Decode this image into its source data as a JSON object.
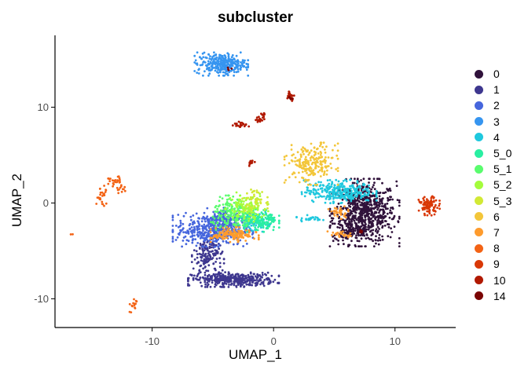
{
  "chart_data": {
    "type": "scatter",
    "title": "subcluster",
    "xlabel": "UMAP_1",
    "ylabel": "UMAP_2",
    "xlim": [
      -18,
      15
    ],
    "ylim": [
      -13,
      17.5
    ],
    "x_ticks": [
      -10,
      0,
      10
    ],
    "y_ticks": [
      -10,
      0,
      10
    ],
    "x_tick_labels": [
      "-10",
      "0",
      "10"
    ],
    "y_tick_labels": [
      "-10",
      "0",
      "10"
    ],
    "grid": false,
    "legend_position": "right",
    "series": [
      {
        "name": "0",
        "color": "#30123B",
        "clusters": [
          {
            "cx": 7.5,
            "cy": -1.0,
            "sx": 1.3,
            "sy": 1.6,
            "n": 700
          },
          {
            "cx": 6.2,
            "cy": -2.8,
            "sx": 0.6,
            "sy": 0.6,
            "n": 80
          }
        ]
      },
      {
        "name": "1",
        "color": "#3E378F",
        "clusters": [
          {
            "cx": -3.3,
            "cy": -8.0,
            "sx": 1.7,
            "sy": 0.35,
            "n": 380
          },
          {
            "cx": -5.4,
            "cy": -5.5,
            "sx": 0.6,
            "sy": 1.1,
            "n": 160
          }
        ]
      },
      {
        "name": "2",
        "color": "#4666DD",
        "clusters": [
          {
            "cx": -5.0,
            "cy": -2.8,
            "sx": 1.5,
            "sy": 0.8,
            "n": 450
          },
          {
            "cx": -3.7,
            "cy": -1.6,
            "sx": 0.8,
            "sy": 0.5,
            "n": 120
          }
        ]
      },
      {
        "name": "3",
        "color": "#3695F0",
        "clusters": [
          {
            "cx": -4.3,
            "cy": 14.5,
            "sx": 1.0,
            "sy": 0.55,
            "n": 300
          }
        ]
      },
      {
        "name": "4",
        "color": "#1FC8DE",
        "clusters": [
          {
            "cx": 5.4,
            "cy": 1.2,
            "sx": 1.4,
            "sy": 0.55,
            "n": 300
          },
          {
            "cx": -1.3,
            "cy": -1.9,
            "sx": 0.6,
            "sy": 0.5,
            "n": 60
          },
          {
            "cx": 3.0,
            "cy": -1.6,
            "sx": 0.5,
            "sy": 0.15,
            "n": 25
          }
        ]
      },
      {
        "name": "5_0",
        "color": "#29EFA2",
        "clusters": [
          {
            "cx": -1.3,
            "cy": -1.8,
            "sx": 0.8,
            "sy": 0.55,
            "n": 160
          }
        ]
      },
      {
        "name": "5_1",
        "color": "#5AFC6E",
        "clusters": [
          {
            "cx": -3.4,
            "cy": -1.2,
            "sx": 0.8,
            "sy": 0.9,
            "n": 160
          }
        ]
      },
      {
        "name": "5_2",
        "color": "#A4FC3C",
        "clusters": [
          {
            "cx": -2.2,
            "cy": -0.4,
            "sx": 0.8,
            "sy": 0.7,
            "n": 120
          }
        ]
      },
      {
        "name": "5_3",
        "color": "#D2E935",
        "clusters": [
          {
            "cx": -1.6,
            "cy": 0.3,
            "sx": 0.5,
            "sy": 0.5,
            "n": 45
          }
        ]
      },
      {
        "name": "6",
        "color": "#F3C63A",
        "clusters": [
          {
            "cx": 3.1,
            "cy": 4.1,
            "sx": 1.0,
            "sy": 1.0,
            "n": 220
          }
        ]
      },
      {
        "name": "7",
        "color": "#FE9B2D",
        "clusters": [
          {
            "cx": -3.2,
            "cy": -3.3,
            "sx": 0.9,
            "sy": 0.35,
            "n": 140
          },
          {
            "cx": 5.4,
            "cy": -1.0,
            "sx": 0.4,
            "sy": 0.3,
            "n": 30
          },
          {
            "cx": 5.5,
            "cy": -3.3,
            "sx": 0.5,
            "sy": 0.25,
            "n": 25
          }
        ]
      },
      {
        "name": "8",
        "color": "#F36315",
        "clusters": [
          {
            "cx": -13.2,
            "cy": 2.2,
            "sx": 0.3,
            "sy": 0.3,
            "n": 25
          },
          {
            "cx": -14.1,
            "cy": 0.8,
            "sx": 0.25,
            "sy": 0.5,
            "n": 25
          },
          {
            "cx": -12.6,
            "cy": 1.4,
            "sx": 0.2,
            "sy": 0.2,
            "n": 10
          },
          {
            "cx": -11.4,
            "cy": -10.6,
            "sx": 0.2,
            "sy": 0.25,
            "n": 12
          },
          {
            "cx": -11.8,
            "cy": -11.5,
            "sx": 0.05,
            "sy": 0.1,
            "n": 2
          },
          {
            "cx": -16.6,
            "cy": -3.3,
            "sx": 0.05,
            "sy": 0.05,
            "n": 2
          }
        ]
      },
      {
        "name": "9",
        "color": "#D93806",
        "clusters": [
          {
            "cx": 12.8,
            "cy": -0.3,
            "sx": 0.4,
            "sy": 0.45,
            "n": 90
          }
        ]
      },
      {
        "name": "10",
        "color": "#B11901",
        "clusters": [
          {
            "cx": 1.4,
            "cy": 11.2,
            "sx": 0.15,
            "sy": 0.25,
            "n": 25
          },
          {
            "cx": -2.7,
            "cy": 8.2,
            "sx": 0.3,
            "sy": 0.15,
            "n": 22
          },
          {
            "cx": -1.2,
            "cy": 8.7,
            "sx": 0.2,
            "sy": 0.15,
            "n": 16
          },
          {
            "cx": -0.8,
            "cy": 9.2,
            "sx": 0.1,
            "sy": 0.1,
            "n": 8
          },
          {
            "cx": -1.8,
            "cy": 4.2,
            "sx": 0.15,
            "sy": 0.15,
            "n": 10
          }
        ]
      },
      {
        "name": "14",
        "color": "#7A0403",
        "clusters": [
          {
            "cx": -3.6,
            "cy": 14.0,
            "sx": 0.1,
            "sy": 0.1,
            "n": 4
          },
          {
            "cx": 7.2,
            "cy": -3.0,
            "sx": 0.1,
            "sy": 0.1,
            "n": 4
          },
          {
            "cx": 1.4,
            "cy": 11.0,
            "sx": 0.1,
            "sy": 0.1,
            "n": 4
          }
        ]
      }
    ]
  }
}
